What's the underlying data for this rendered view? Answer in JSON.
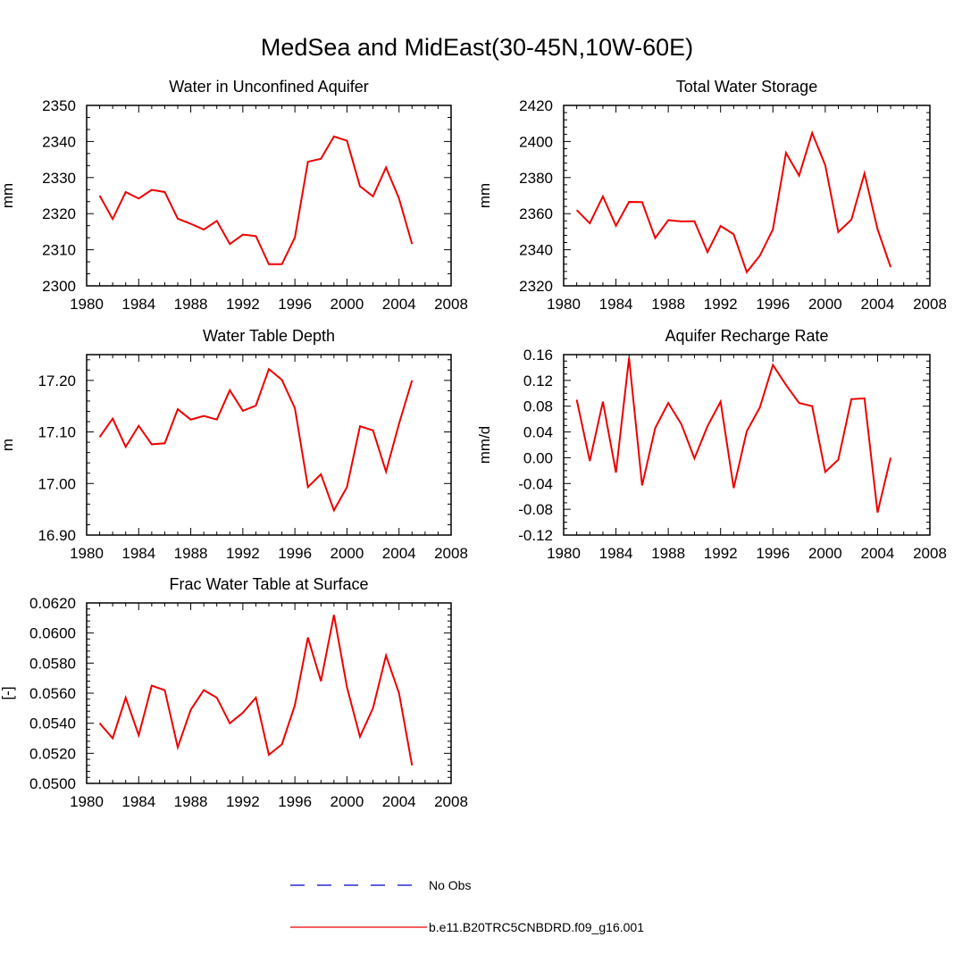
{
  "figure_title": "MedSea and MidEast(30-45N,10W-60E)",
  "colors": {
    "model": "#ee0000",
    "obs": "#0000cc",
    "axis": "#000000"
  },
  "legend": {
    "obs_label": "No Obs",
    "model_label": "b.e11.B20TRC5CNBDRD.f09_g16.001"
  },
  "chart_data": [
    {
      "type": "line",
      "title": "Water in Unconfined Aquifer",
      "ylabel": "mm",
      "xlim": [
        1980,
        2008
      ],
      "ylim": [
        2300,
        2350
      ],
      "xticks": [
        1980,
        1984,
        1988,
        1992,
        1996,
        2000,
        2004,
        2008
      ],
      "xtick_labels": [
        "1980",
        "1984",
        "1988",
        "1992",
        "1996",
        "2000",
        "2004",
        "2008"
      ],
      "yticks": [
        2300,
        2310,
        2320,
        2330,
        2340,
        2350
      ],
      "ytick_labels": [
        "2300",
        "2310",
        "2320",
        "2330",
        "2340",
        "2350"
      ],
      "yminor": 2,
      "x": [
        1981,
        1982,
        1983,
        1984,
        1985,
        1986,
        1987,
        1988,
        1989,
        1990,
        1991,
        1992,
        1993,
        1994,
        1995,
        1996,
        1997,
        1998,
        1999,
        2000,
        2001,
        2002,
        2003,
        2004,
        2005
      ],
      "series": [
        {
          "name": "b.e11.B20TRC5CNBDRD.f09_g16.001",
          "values": [
            2325.0,
            2318.5,
            2326.0,
            2324.2,
            2326.6,
            2326.0,
            2318.6,
            2317.2,
            2315.6,
            2318.0,
            2311.6,
            2314.2,
            2313.8,
            2306.0,
            2306.0,
            2313.4,
            2334.4,
            2335.2,
            2341.4,
            2340.2,
            2327.6,
            2324.8,
            2332.8,
            2324.2,
            2311.6
          ]
        }
      ]
    },
    {
      "type": "line",
      "title": "Total Water Storage",
      "ylabel": "mm",
      "xlim": [
        1980,
        2008
      ],
      "ylim": [
        2320,
        2420
      ],
      "xticks": [
        1980,
        1984,
        1988,
        1992,
        1996,
        2000,
        2004,
        2008
      ],
      "xtick_labels": [
        "1980",
        "1984",
        "1988",
        "1992",
        "1996",
        "2000",
        "2004",
        "2008"
      ],
      "yticks": [
        2320,
        2340,
        2360,
        2380,
        2400,
        2420
      ],
      "ytick_labels": [
        "2320",
        "2340",
        "2360",
        "2380",
        "2400",
        "2420"
      ],
      "yminor": 4,
      "x": [
        1981,
        1982,
        1983,
        1984,
        1985,
        1986,
        1987,
        1988,
        1989,
        1990,
        1991,
        1992,
        1993,
        1994,
        1995,
        1996,
        1997,
        1998,
        1999,
        2000,
        2001,
        2002,
        2003,
        2004,
        2005
      ],
      "series": [
        {
          "name": "b.e11.B20TRC5CNBDRD.f09_g16.001",
          "values": [
            2362.0,
            2354.7,
            2369.6,
            2353.3,
            2366.5,
            2366.4,
            2346.5,
            2356.4,
            2355.7,
            2355.8,
            2338.7,
            2353.2,
            2348.6,
            2327.6,
            2336.7,
            2351.3,
            2393.7,
            2381.1,
            2404.7,
            2386.9,
            2349.8,
            2356.7,
            2382.3,
            2351.4,
            2330.4
          ]
        }
      ]
    },
    {
      "type": "line",
      "title": "Water Table Depth",
      "ylabel": "m",
      "xlim": [
        1980,
        2008
      ],
      "ylim": [
        16.9,
        17.25
      ],
      "xticks": [
        1980,
        1984,
        1988,
        1992,
        1996,
        2000,
        2004,
        2008
      ],
      "xtick_labels": [
        "1980",
        "1984",
        "1988",
        "1992",
        "1996",
        "2000",
        "2004",
        "2008"
      ],
      "yticks": [
        16.9,
        17.0,
        17.1,
        17.2
      ],
      "ytick_labels": [
        "16.90",
        "17.00",
        "17.10",
        "17.20"
      ],
      "yminor": 4,
      "x": [
        1981,
        1982,
        1983,
        1984,
        1985,
        1986,
        1987,
        1988,
        1989,
        1990,
        1991,
        1992,
        1993,
        1994,
        1995,
        1996,
        1997,
        1998,
        1999,
        2000,
        2001,
        2002,
        2003,
        2004,
        2005
      ],
      "series": [
        {
          "name": "b.e11.B20TRC5CNBDRD.f09_g16.001",
          "values": [
            17.09,
            17.126,
            17.071,
            17.112,
            17.076,
            17.078,
            17.144,
            17.124,
            17.131,
            17.124,
            17.181,
            17.141,
            17.151,
            17.222,
            17.201,
            17.146,
            16.993,
            17.018,
            16.948,
            16.993,
            17.111,
            17.103,
            17.023,
            17.116,
            17.2
          ]
        }
      ]
    },
    {
      "type": "line",
      "title": "Aquifer Recharge Rate",
      "ylabel": "mm/d",
      "xlim": [
        1980,
        2008
      ],
      "ylim": [
        -0.12,
        0.16
      ],
      "xticks": [
        1980,
        1984,
        1988,
        1992,
        1996,
        2000,
        2004,
        2008
      ],
      "xtick_labels": [
        "1980",
        "1984",
        "1988",
        "1992",
        "1996",
        "2000",
        "2004",
        "2008"
      ],
      "yticks": [
        -0.12,
        -0.08,
        -0.04,
        0.0,
        0.04,
        0.08,
        0.12,
        0.16
      ],
      "ytick_labels": [
        "-0.12",
        "-0.08",
        "-0.04",
        "0.00",
        "0.04",
        "0.08",
        "0.12",
        "0.16"
      ],
      "yminor": 3,
      "x": [
        1981,
        1982,
        1983,
        1984,
        1985,
        1986,
        1987,
        1988,
        1989,
        1990,
        1991,
        1992,
        1993,
        1994,
        1995,
        1996,
        1997,
        1998,
        1999,
        2000,
        2001,
        2002,
        2003,
        2004,
        2005
      ],
      "series": [
        {
          "name": "b.e11.B20TRC5CNBDRD.f09_g16.001",
          "values": [
            0.09,
            -0.005,
            0.087,
            -0.023,
            0.155,
            -0.043,
            0.046,
            0.085,
            0.052,
            -0.001,
            0.049,
            0.087,
            -0.047,
            0.041,
            0.078,
            0.144,
            0.113,
            0.085,
            0.08,
            -0.022,
            -0.003,
            0.091,
            0.092,
            -0.085,
            0.0
          ]
        }
      ]
    },
    {
      "type": "line",
      "title": "Frac Water Table at Surface",
      "ylabel": "[-]",
      "xlim": [
        1980,
        2008
      ],
      "ylim": [
        0.05,
        0.062
      ],
      "xticks": [
        1980,
        1984,
        1988,
        1992,
        1996,
        2000,
        2004,
        2008
      ],
      "xtick_labels": [
        "1980",
        "1984",
        "1988",
        "1992",
        "1996",
        "2000",
        "2004",
        "2008"
      ],
      "yticks": [
        0.05,
        0.052,
        0.054,
        0.056,
        0.058,
        0.06,
        0.062
      ],
      "ytick_labels": [
        "0.0500",
        "0.0520",
        "0.0540",
        "0.0560",
        "0.0580",
        "0.0600",
        "0.0620"
      ],
      "yminor": 4,
      "x": [
        1981,
        1982,
        1983,
        1984,
        1985,
        1986,
        1987,
        1988,
        1989,
        1990,
        1991,
        1992,
        1993,
        1994,
        1995,
        1996,
        1997,
        1998,
        1999,
        2000,
        2001,
        2002,
        2003,
        2004,
        2005
      ],
      "series": [
        {
          "name": "b.e11.B20TRC5CNBDRD.f09_g16.001",
          "values": [
            0.054,
            0.053,
            0.0557,
            0.0532,
            0.0565,
            0.0562,
            0.0524,
            0.0549,
            0.0562,
            0.0557,
            0.054,
            0.0547,
            0.0557,
            0.0519,
            0.0526,
            0.0552,
            0.0597,
            0.0568,
            0.0612,
            0.0564,
            0.0531,
            0.055,
            0.0585,
            0.056,
            0.0512
          ]
        }
      ]
    }
  ]
}
